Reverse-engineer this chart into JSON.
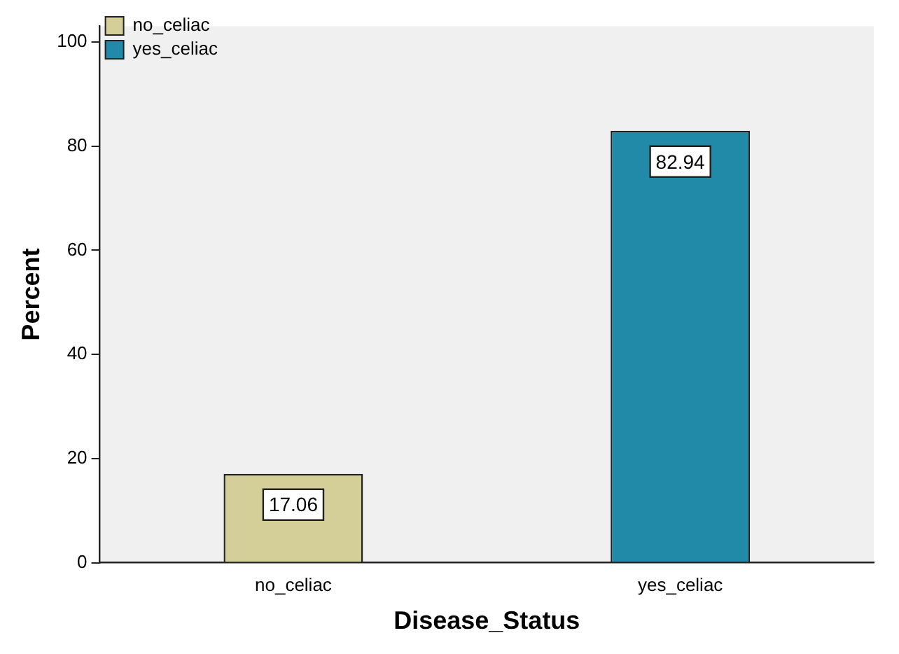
{
  "chart_data": {
    "type": "bar",
    "xlabel": "Disease_Status",
    "ylabel": "Percent",
    "categories": [
      "no_celiac",
      "yes_celiac"
    ],
    "series": [
      {
        "name": "no_celiac",
        "color": "#d4cf99",
        "values": [
          17.06,
          null
        ]
      },
      {
        "name": "yes_celiac",
        "color": "#218aa8",
        "values": [
          null,
          82.94
        ]
      }
    ],
    "ylim": [
      0,
      103
    ],
    "yticks": [
      0,
      20,
      40,
      60,
      80,
      100
    ],
    "data_labels": true,
    "legend": "top left",
    "grid": false
  }
}
